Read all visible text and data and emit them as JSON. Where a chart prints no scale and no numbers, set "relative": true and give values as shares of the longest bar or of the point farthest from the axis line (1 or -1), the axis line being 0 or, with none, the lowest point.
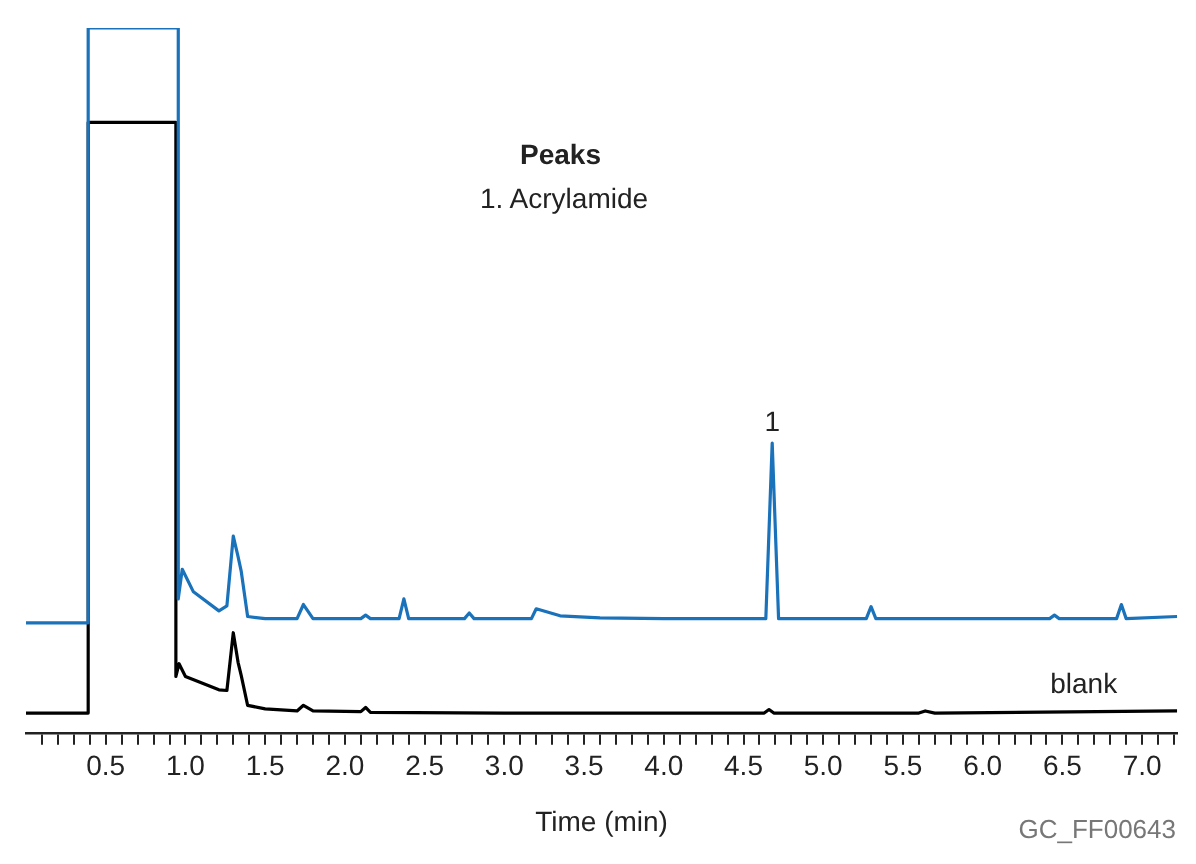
{
  "chart_data": {
    "type": "line",
    "relative": true,
    "xlabel": "Time (min)",
    "xlim": [
      0,
      7.22
    ],
    "xticks": [
      {
        "value": 0.1,
        "label": null
      },
      {
        "value": 0.2,
        "label": null
      },
      {
        "value": 0.3,
        "label": null
      },
      {
        "value": 0.4,
        "label": null
      },
      0.5,
      {
        "value": 0.6,
        "label": null
      },
      {
        "value": 0.7,
        "label": null
      },
      {
        "value": 0.8,
        "label": null
      },
      {
        "value": 0.9,
        "label": null
      },
      {
        "value": 1,
        "label": "1.0"
      },
      {
        "value": 1.1,
        "label": null
      },
      {
        "value": 1.2,
        "label": null
      },
      {
        "value": 1.3,
        "label": null
      },
      {
        "value": 1.4,
        "label": null
      },
      1.5,
      {
        "value": 1.6,
        "label": null
      },
      {
        "value": 1.7,
        "label": null
      },
      {
        "value": 1.8,
        "label": null
      },
      {
        "value": 1.9,
        "label": null
      },
      {
        "value": 2,
        "label": "2.0"
      },
      {
        "value": 2.1,
        "label": null
      },
      {
        "value": 2.2,
        "label": null
      },
      {
        "value": 2.3,
        "label": null
      },
      {
        "value": 2.4,
        "label": null
      },
      2.5,
      {
        "value": 2.6,
        "label": null
      },
      {
        "value": 2.7,
        "label": null
      },
      {
        "value": 2.8,
        "label": null
      },
      {
        "value": 2.9,
        "label": null
      },
      {
        "value": 3,
        "label": "3.0"
      },
      {
        "value": 3.1,
        "label": null
      },
      {
        "value": 3.2,
        "label": null
      },
      {
        "value": 3.3,
        "label": null
      },
      {
        "value": 3.4,
        "label": null
      },
      3.5,
      {
        "value": 3.6,
        "label": null
      },
      {
        "value": 3.7,
        "label": null
      },
      {
        "value": 3.8,
        "label": null
      },
      {
        "value": 3.9,
        "label": null
      },
      {
        "value": 4,
        "label": "4.0"
      },
      {
        "value": 4.1,
        "label": null
      },
      {
        "value": 4.2,
        "label": null
      },
      {
        "value": 4.3,
        "label": null
      },
      {
        "value": 4.4,
        "label": null
      },
      4.5,
      {
        "value": 4.6,
        "label": null
      },
      {
        "value": 4.7,
        "label": null
      },
      {
        "value": 4.8,
        "label": null
      },
      {
        "value": 4.9,
        "label": null
      },
      {
        "value": 5,
        "label": "5.0"
      },
      {
        "value": 5.1,
        "label": null
      },
      {
        "value": 5.2,
        "label": null
      },
      {
        "value": 5.3,
        "label": null
      },
      {
        "value": 5.4,
        "label": null
      },
      5.5,
      {
        "value": 5.6,
        "label": null
      },
      {
        "value": 5.7,
        "label": null
      },
      {
        "value": 5.8,
        "label": null
      },
      {
        "value": 5.9,
        "label": null
      },
      {
        "value": 6,
        "label": "6.0"
      },
      {
        "value": 6.1,
        "label": null
      },
      {
        "value": 6.2,
        "label": null
      },
      {
        "value": 6.3,
        "label": null
      },
      {
        "value": 6.4,
        "label": null
      },
      6.5,
      {
        "value": 6.6,
        "label": null
      },
      {
        "value": 6.7,
        "label": null
      },
      {
        "value": 6.8,
        "label": null
      },
      {
        "value": 6.9,
        "label": null
      },
      {
        "value": 7,
        "label": "7.0"
      },
      {
        "value": 7.1,
        "label": null
      },
      {
        "value": 7.2,
        "label": null
      }
    ],
    "tick_labels": "x",
    "grid": false,
    "legend": false,
    "marker": "none",
    "line_style": "solid",
    "series": [
      {
        "color": "#1a72bb",
        "x": [
          0,
          0.39,
          0.39,
          0.955,
          0.955,
          0.98,
          1.05,
          1.21,
          1.26,
          1.3,
          1.33,
          1.35,
          1.39,
          1.5,
          1.7,
          1.74,
          1.8,
          2.1,
          2.13,
          2.16,
          2.34,
          2.37,
          2.4,
          2.75,
          2.78,
          2.81,
          3.17,
          3.2,
          3.35,
          3.6,
          4.0,
          4.64,
          4.68,
          4.72,
          4.8,
          5.27,
          5.3,
          5.33,
          5.6,
          6.42,
          6.45,
          6.48,
          6.84,
          6.87,
          6.9,
          7.22
        ],
        "values": [
          0.156,
          0.156,
          1,
          1,
          0.19,
          0.232,
          0.2,
          0.173,
          0.18,
          0.279,
          0.25,
          0.229,
          0.165,
          0.162,
          0.162,
          0.182,
          0.162,
          0.162,
          0.167,
          0.162,
          0.162,
          0.19,
          0.162,
          0.162,
          0.17,
          0.162,
          0.162,
          0.176,
          0.166,
          0.163,
          0.162,
          0.162,
          0.411,
          0.162,
          0.162,
          0.162,
          0.179,
          0.162,
          0.162,
          0.162,
          0.167,
          0.162,
          0.162,
          0.182,
          0.162,
          0.165
        ]
      },
      {
        "name": "blank",
        "color": "#000000",
        "x": [
          0,
          0.39,
          0.39,
          0.94,
          0.94,
          0.96,
          1.0,
          1.21,
          1.26,
          1.3,
          1.33,
          1.35,
          1.39,
          1.5,
          1.7,
          1.74,
          1.8,
          2.1,
          2.13,
          2.16,
          3.0,
          4.63,
          4.66,
          4.69,
          5.6,
          5.64,
          5.7,
          7.22
        ],
        "values": [
          0.028,
          0.028,
          0.866,
          0.866,
          0.08,
          0.098,
          0.08,
          0.061,
          0.06,
          0.142,
          0.1,
          0.081,
          0.039,
          0.034,
          0.031,
          0.039,
          0.031,
          0.03,
          0.036,
          0.029,
          0.028,
          0.028,
          0.033,
          0.028,
          0.028,
          0.031,
          0.028,
          0.031
        ]
      }
    ],
    "annotations": [
      "Peaks",
      "1. Acrylamide",
      {
        "text": "1",
        "x": 4.68,
        "y": 0.411
      },
      "GC_FF00643"
    ]
  }
}
